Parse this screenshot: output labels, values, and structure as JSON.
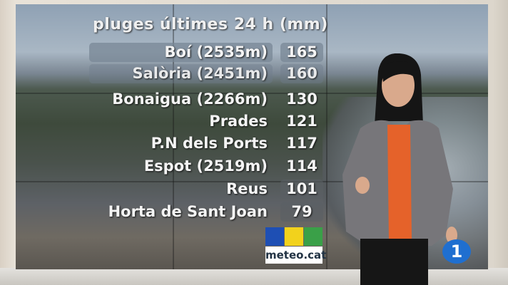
{
  "graphic": {
    "title": "pluges últimes 24 h (mm)",
    "rows": [
      {
        "name": "Boí (2535m)",
        "value": "165"
      },
      {
        "name": "Salòria (2451m)",
        "value": "160"
      },
      {
        "name": "Bonaigua (2266m)",
        "value": "130"
      },
      {
        "name": "Prades",
        "value": "121"
      },
      {
        "name": "P.N dels Ports",
        "value": "117"
      },
      {
        "name": "Espot (2519m)",
        "value": "114"
      },
      {
        "name": "Reus",
        "value": "101"
      },
      {
        "name": "Horta de Sant Joan",
        "value": "79"
      }
    ],
    "logo_text": "meteo.cat"
  },
  "channel_badge": "1",
  "colors": {
    "logo_blue": "#1e4fb4",
    "logo_yellow": "#f2d21c",
    "logo_green": "#3aa048",
    "channel_blue": "#1f6fd0"
  }
}
